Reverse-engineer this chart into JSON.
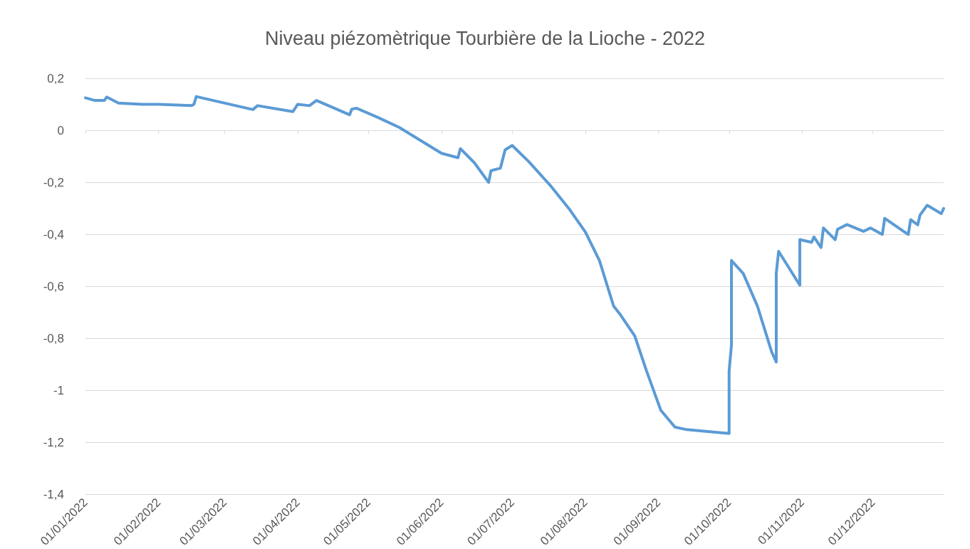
{
  "chart_data": {
    "type": "line",
    "title": "Niveau piézomètrique Tourbière de la Lioche - 2022",
    "series": [
      {
        "color": "#5b9bd5",
        "line_style": "solid",
        "marker": "none",
        "x": [
          "2022-01-01",
          "2022-01-05",
          "2022-01-09",
          "2022-01-10",
          "2022-01-15",
          "2022-01-25",
          "2022-02-01",
          "2022-02-15",
          "2022-02-16",
          "2022-02-17",
          "2022-03-13",
          "2022-03-15",
          "2022-03-30",
          "2022-04-01",
          "2022-04-06",
          "2022-04-09",
          "2022-04-23",
          "2022-04-24",
          "2022-04-26",
          "2022-05-05",
          "2022-05-14",
          "2022-05-23",
          "2022-06-01",
          "2022-06-08",
          "2022-06-09",
          "2022-06-15",
          "2022-06-21",
          "2022-06-22",
          "2022-06-26",
          "2022-06-28",
          "2022-07-01",
          "2022-07-08",
          "2022-07-17",
          "2022-07-25",
          "2022-08-01",
          "2022-08-07",
          "2022-08-13",
          "2022-08-16",
          "2022-08-22",
          "2022-08-27",
          "2022-09-02",
          "2022-09-08",
          "2022-09-13",
          "2022-10-01",
          "2022-10-01",
          "2022-10-02",
          "2022-10-02",
          "2022-10-07",
          "2022-10-13",
          "2022-10-19",
          "2022-10-21",
          "2022-10-21",
          "2022-10-22",
          "2022-10-31",
          "2022-10-31",
          "2022-11-05",
          "2022-11-06",
          "2022-11-09",
          "2022-11-10",
          "2022-11-15",
          "2022-11-16",
          "2022-11-20",
          "2022-11-27",
          "2022-11-30",
          "2022-12-05",
          "2022-12-06",
          "2022-12-14",
          "2022-12-16",
          "2022-12-17",
          "2022-12-20",
          "2022-12-21",
          "2022-12-24",
          "2022-12-30",
          "2022-12-31"
        ],
        "values": [
          0.125,
          0.115,
          0.115,
          0.128,
          0.105,
          0.1,
          0.1,
          0.095,
          0.1,
          0.13,
          0.08,
          0.095,
          0.072,
          0.1,
          0.095,
          0.115,
          0.06,
          0.082,
          0.085,
          0.05,
          0.012,
          -0.038,
          -0.088,
          -0.105,
          -0.07,
          -0.125,
          -0.2,
          -0.155,
          -0.145,
          -0.075,
          -0.058,
          -0.12,
          -0.21,
          -0.3,
          -0.39,
          -0.5,
          -0.675,
          -0.71,
          -0.79,
          -0.925,
          -1.075,
          -1.14,
          -1.15,
          -1.165,
          -0.925,
          -0.825,
          -0.5,
          -0.55,
          -0.675,
          -0.85,
          -0.89,
          -0.55,
          -0.465,
          -0.595,
          -0.42,
          -0.43,
          -0.41,
          -0.45,
          -0.375,
          -0.42,
          -0.38,
          -0.362,
          -0.388,
          -0.375,
          -0.4,
          -0.338,
          -0.388,
          -0.4,
          -0.343,
          -0.363,
          -0.325,
          -0.288,
          -0.32,
          -0.3
        ]
      }
    ],
    "xlim": [
      "2022-01-01",
      "2022-12-31"
    ],
    "xticks": [
      {
        "value": "2022-01-01",
        "label": "01/01/2022"
      },
      {
        "value": "2022-02-01",
        "label": "01/02/2022"
      },
      {
        "value": "2022-03-01",
        "label": "01/03/2022"
      },
      {
        "value": "2022-04-01",
        "label": "01/04/2022"
      },
      {
        "value": "2022-05-01",
        "label": "01/05/2022"
      },
      {
        "value": "2022-06-01",
        "label": "01/06/2022"
      },
      {
        "value": "2022-07-01",
        "label": "01/07/2022"
      },
      {
        "value": "2022-08-01",
        "label": "01/08/2022"
      },
      {
        "value": "2022-09-01",
        "label": "01/09/2022"
      },
      {
        "value": "2022-10-01",
        "label": "01/10/2022"
      },
      {
        "value": "2022-11-01",
        "label": "01/11/2022"
      },
      {
        "value": "2022-12-01",
        "label": "01/12/2022"
      }
    ],
    "ylim": [
      -1.4,
      0.2
    ],
    "yticks": [
      {
        "value": -1.4,
        "label": "-1,4"
      },
      {
        "value": -1.2,
        "label": "-1,2"
      },
      {
        "value": -1,
        "label": "-1"
      },
      {
        "value": -0.8,
        "label": "-0,8"
      },
      {
        "value": -0.6,
        "label": "-0,6"
      },
      {
        "value": -0.4,
        "label": "-0,4"
      },
      {
        "value": -0.2,
        "label": "-0,2"
      },
      {
        "value": 0,
        "label": "0"
      },
      {
        "value": 0.2,
        "label": "0,2"
      }
    ],
    "grid": "y"
  }
}
